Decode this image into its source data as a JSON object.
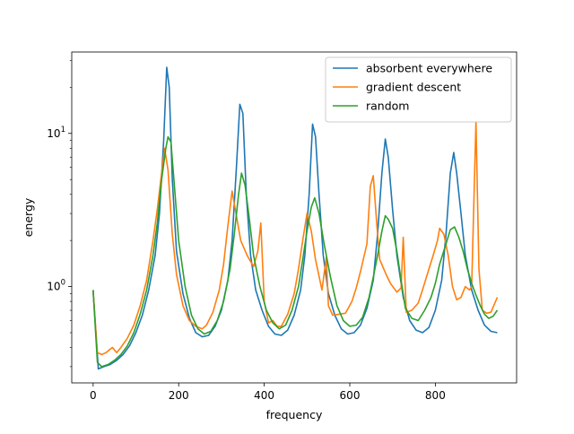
{
  "chart_data": {
    "type": "line",
    "title": "",
    "xlabel": "frequency",
    "ylabel": "energy",
    "xlim": [
      -50,
      990
    ],
    "ylim": [
      0.235,
      34
    ],
    "yscale": "log",
    "x_ticks": [
      0,
      200,
      400,
      600,
      800
    ],
    "x_tick_labels": [
      "0",
      "200",
      "400",
      "600",
      "800"
    ],
    "y_ticks": [
      1,
      10
    ],
    "y_tick_labels": [
      "10^0",
      "10^1"
    ],
    "grid": false,
    "legend_position": "top-right",
    "series": [
      {
        "name": "absorbent everywhere",
        "color": "#1f77b4",
        "points": [
          [
            0,
            0.95
          ],
          [
            12,
            0.29
          ],
          [
            25,
            0.3
          ],
          [
            40,
            0.31
          ],
          [
            55,
            0.33
          ],
          [
            70,
            0.36
          ],
          [
            85,
            0.41
          ],
          [
            100,
            0.5
          ],
          [
            115,
            0.65
          ],
          [
            130,
            0.95
          ],
          [
            145,
            1.6
          ],
          [
            155,
            3.0
          ],
          [
            165,
            9.0
          ],
          [
            172,
            27.0
          ],
          [
            178,
            20.0
          ],
          [
            185,
            5.0
          ],
          [
            195,
            1.7
          ],
          [
            210,
            0.9
          ],
          [
            225,
            0.62
          ],
          [
            240,
            0.5
          ],
          [
            255,
            0.47
          ],
          [
            270,
            0.48
          ],
          [
            285,
            0.55
          ],
          [
            300,
            0.7
          ],
          [
            315,
            1.1
          ],
          [
            325,
            2.0
          ],
          [
            335,
            6.0
          ],
          [
            343,
            15.5
          ],
          [
            350,
            13.5
          ],
          [
            358,
            4.0
          ],
          [
            368,
            1.6
          ],
          [
            380,
            0.95
          ],
          [
            395,
            0.7
          ],
          [
            410,
            0.55
          ],
          [
            425,
            0.49
          ],
          [
            440,
            0.48
          ],
          [
            455,
            0.52
          ],
          [
            470,
            0.65
          ],
          [
            485,
            0.95
          ],
          [
            495,
            1.6
          ],
          [
            505,
            4.0
          ],
          [
            513,
            11.5
          ],
          [
            520,
            9.5
          ],
          [
            528,
            4.0
          ],
          [
            538,
            1.6
          ],
          [
            550,
            0.9
          ],
          [
            565,
            0.65
          ],
          [
            580,
            0.53
          ],
          [
            595,
            0.49
          ],
          [
            610,
            0.5
          ],
          [
            625,
            0.56
          ],
          [
            640,
            0.72
          ],
          [
            655,
            1.1
          ],
          [
            665,
            2.2
          ],
          [
            675,
            5.5
          ],
          [
            683,
            9.2
          ],
          [
            690,
            7.0
          ],
          [
            700,
            3.2
          ],
          [
            710,
            1.6
          ],
          [
            725,
            0.85
          ],
          [
            740,
            0.6
          ],
          [
            755,
            0.52
          ],
          [
            770,
            0.5
          ],
          [
            785,
            0.54
          ],
          [
            800,
            0.7
          ],
          [
            815,
            1.1
          ],
          [
            825,
            2.2
          ],
          [
            835,
            5.5
          ],
          [
            843,
            7.5
          ],
          [
            850,
            5.5
          ],
          [
            860,
            3.0
          ],
          [
            870,
            1.6
          ],
          [
            885,
            0.95
          ],
          [
            900,
            0.7
          ],
          [
            915,
            0.56
          ],
          [
            930,
            0.51
          ],
          [
            945,
            0.5
          ]
        ]
      },
      {
        "name": "gradient descent",
        "color": "#ff7f0e",
        "points": [
          [
            0,
            0.95
          ],
          [
            10,
            0.37
          ],
          [
            20,
            0.36
          ],
          [
            30,
            0.37
          ],
          [
            45,
            0.4
          ],
          [
            55,
            0.37
          ],
          [
            65,
            0.4
          ],
          [
            80,
            0.46
          ],
          [
            95,
            0.56
          ],
          [
            110,
            0.75
          ],
          [
            125,
            1.1
          ],
          [
            140,
            2.0
          ],
          [
            150,
            3.2
          ],
          [
            160,
            5.5
          ],
          [
            167,
            8.0
          ],
          [
            175,
            5.8
          ],
          [
            185,
            2.2
          ],
          [
            195,
            1.2
          ],
          [
            210,
            0.75
          ],
          [
            225,
            0.6
          ],
          [
            240,
            0.55
          ],
          [
            255,
            0.53
          ],
          [
            265,
            0.56
          ],
          [
            280,
            0.68
          ],
          [
            295,
            0.95
          ],
          [
            305,
            1.4
          ],
          [
            315,
            2.5
          ],
          [
            325,
            4.2
          ],
          [
            335,
            2.9
          ],
          [
            345,
            2.0
          ],
          [
            360,
            1.6
          ],
          [
            375,
            1.35
          ],
          [
            385,
            1.7
          ],
          [
            392,
            2.6
          ],
          [
            400,
            0.8
          ],
          [
            410,
            0.58
          ],
          [
            420,
            0.6
          ],
          [
            430,
            0.55
          ],
          [
            440,
            0.55
          ],
          [
            455,
            0.66
          ],
          [
            470,
            0.9
          ],
          [
            480,
            1.3
          ],
          [
            490,
            2.0
          ],
          [
            500,
            3.0
          ],
          [
            510,
            2.3
          ],
          [
            520,
            1.5
          ],
          [
            535,
            0.95
          ],
          [
            545,
            1.55
          ],
          [
            550,
            0.75
          ],
          [
            560,
            0.65
          ],
          [
            575,
            0.66
          ],
          [
            590,
            0.67
          ],
          [
            605,
            0.8
          ],
          [
            615,
            0.98
          ],
          [
            625,
            1.25
          ],
          [
            640,
            1.9
          ],
          [
            648,
            4.5
          ],
          [
            655,
            5.3
          ],
          [
            663,
            2.6
          ],
          [
            670,
            1.5
          ],
          [
            685,
            1.2
          ],
          [
            695,
            1.05
          ],
          [
            710,
            0.92
          ],
          [
            720,
            0.98
          ],
          [
            725,
            2.1
          ],
          [
            732,
            0.68
          ],
          [
            745,
            0.7
          ],
          [
            760,
            0.78
          ],
          [
            770,
            0.95
          ],
          [
            785,
            1.3
          ],
          [
            795,
            1.6
          ],
          [
            805,
            2.0
          ],
          [
            810,
            2.4
          ],
          [
            820,
            2.2
          ],
          [
            830,
            1.6
          ],
          [
            840,
            1.0
          ],
          [
            850,
            0.82
          ],
          [
            860,
            0.85
          ],
          [
            870,
            1.0
          ],
          [
            880,
            0.95
          ],
          [
            885,
            1.0
          ],
          [
            895,
            12.0
          ],
          [
            902,
            1.3
          ],
          [
            910,
            0.7
          ],
          [
            920,
            0.67
          ],
          [
            930,
            0.68
          ],
          [
            945,
            0.85
          ]
        ]
      },
      {
        "name": "random",
        "color": "#2ca02c",
        "points": [
          [
            0,
            0.95
          ],
          [
            10,
            0.32
          ],
          [
            20,
            0.3
          ],
          [
            35,
            0.31
          ],
          [
            50,
            0.33
          ],
          [
            65,
            0.36
          ],
          [
            80,
            0.41
          ],
          [
            95,
            0.5
          ],
          [
            110,
            0.66
          ],
          [
            125,
            0.95
          ],
          [
            140,
            1.6
          ],
          [
            150,
            2.6
          ],
          [
            160,
            5.0
          ],
          [
            170,
            8.0
          ],
          [
            175,
            9.5
          ],
          [
            182,
            8.8
          ],
          [
            190,
            4.5
          ],
          [
            200,
            2.0
          ],
          [
            215,
            1.0
          ],
          [
            230,
            0.65
          ],
          [
            245,
            0.53
          ],
          [
            260,
            0.49
          ],
          [
            275,
            0.51
          ],
          [
            290,
            0.6
          ],
          [
            305,
            0.8
          ],
          [
            320,
            1.3
          ],
          [
            330,
            2.2
          ],
          [
            340,
            4.0
          ],
          [
            347,
            5.5
          ],
          [
            355,
            4.6
          ],
          [
            365,
            2.8
          ],
          [
            375,
            1.6
          ],
          [
            390,
            1.0
          ],
          [
            405,
            0.7
          ],
          [
            420,
            0.58
          ],
          [
            435,
            0.53
          ],
          [
            450,
            0.56
          ],
          [
            465,
            0.7
          ],
          [
            480,
            1.0
          ],
          [
            490,
            1.5
          ],
          [
            500,
            2.3
          ],
          [
            510,
            3.3
          ],
          [
            518,
            3.8
          ],
          [
            528,
            3.0
          ],
          [
            540,
            1.9
          ],
          [
            555,
            1.15
          ],
          [
            570,
            0.75
          ],
          [
            585,
            0.6
          ],
          [
            600,
            0.55
          ],
          [
            615,
            0.56
          ],
          [
            630,
            0.63
          ],
          [
            645,
            0.85
          ],
          [
            655,
            1.15
          ],
          [
            665,
            1.6
          ],
          [
            675,
            2.3
          ],
          [
            683,
            2.9
          ],
          [
            690,
            2.75
          ],
          [
            700,
            2.4
          ],
          [
            710,
            1.7
          ],
          [
            720,
            1.1
          ],
          [
            730,
            0.72
          ],
          [
            745,
            0.62
          ],
          [
            760,
            0.6
          ],
          [
            775,
            0.7
          ],
          [
            790,
            0.85
          ],
          [
            800,
            1.05
          ],
          [
            810,
            1.4
          ],
          [
            825,
            1.9
          ],
          [
            835,
            2.35
          ],
          [
            845,
            2.45
          ],
          [
            855,
            2.1
          ],
          [
            865,
            1.7
          ],
          [
            875,
            1.3
          ],
          [
            885,
            1.05
          ],
          [
            895,
            0.88
          ],
          [
            905,
            0.75
          ],
          [
            915,
            0.66
          ],
          [
            925,
            0.62
          ],
          [
            935,
            0.64
          ],
          [
            945,
            0.7
          ]
        ]
      }
    ]
  }
}
